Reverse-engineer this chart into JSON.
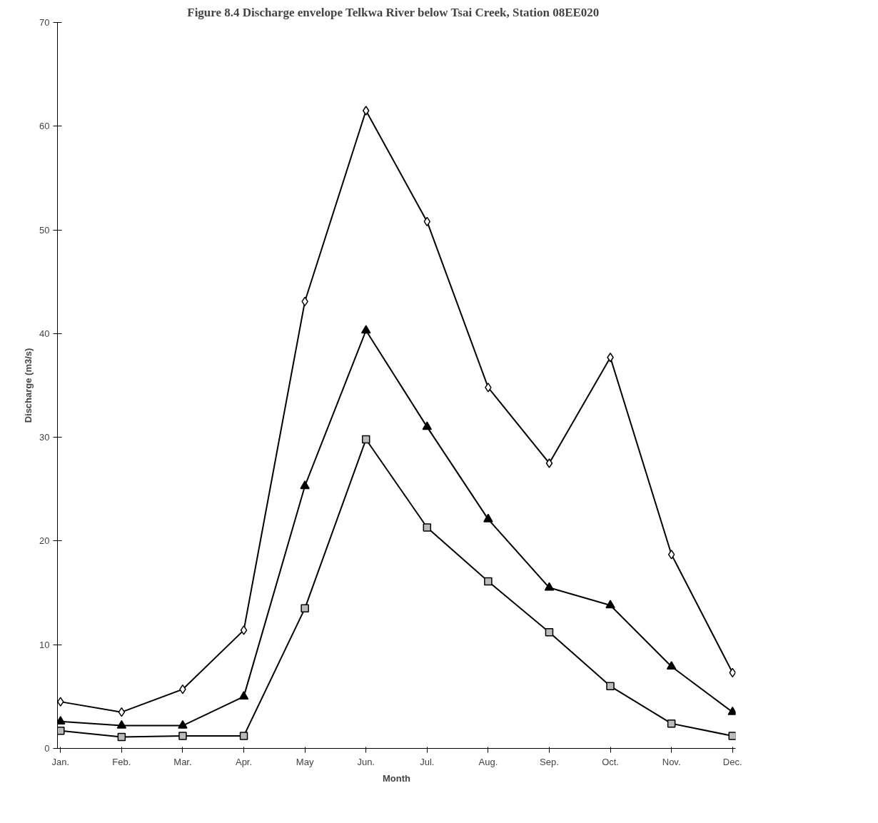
{
  "chart_data": {
    "type": "line",
    "title": "Figure 8.4   Discharge envelope Telkwa River below Tsai Creek, Station 08EE020",
    "xlabel": "Month",
    "ylabel": "Discharge (m3/s)",
    "categories": [
      "Jan.",
      "Feb.",
      "Mar.",
      "Apr.",
      "May",
      "Jun.",
      "Jul.",
      "Aug.",
      "Sep.",
      "Oct.",
      "Nov.",
      "Dec."
    ],
    "series": [
      {
        "color": "#000000",
        "marker": "diamond",
        "values": [
          4.5,
          3.5,
          5.7,
          11.4,
          43.1,
          61.5,
          50.8,
          34.8,
          27.5,
          37.7,
          18.7,
          7.3
        ]
      },
      {
        "color": "#000000",
        "marker": "triangle",
        "values": [
          2.6,
          2.2,
          2.2,
          5.0,
          25.3,
          40.3,
          31.0,
          22.1,
          15.5,
          13.8,
          7.9,
          3.5
        ]
      },
      {
        "color": "#000000",
        "marker": "square",
        "values": [
          1.7,
          1.1,
          1.2,
          1.2,
          13.5,
          29.8,
          21.3,
          16.1,
          11.2,
          6.0,
          2.4,
          1.2
        ]
      }
    ],
    "ylim": [
      0,
      70
    ],
    "yticks": [
      0,
      10,
      20,
      30,
      40,
      50,
      60,
      70
    ],
    "line_style": "solid"
  }
}
